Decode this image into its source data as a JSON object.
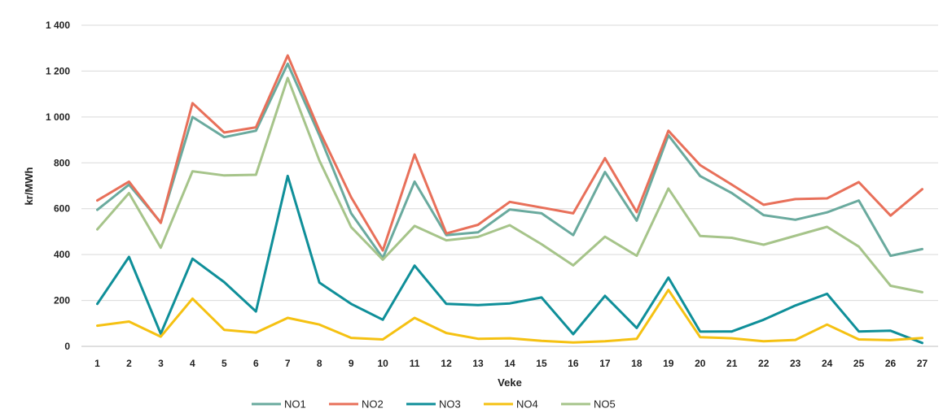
{
  "chart_data": {
    "type": "line",
    "title": "",
    "xlabel": "Veke",
    "ylabel": "kr/MWh",
    "ylim": [
      0,
      1400
    ],
    "yticks": [
      "0",
      "200",
      "400",
      "600",
      "800",
      "1 000",
      "1 200",
      "1 400"
    ],
    "ytick_values": [
      0,
      200,
      400,
      600,
      800,
      1000,
      1200,
      1400
    ],
    "categories": [
      "1",
      "2",
      "3",
      "4",
      "5",
      "6",
      "7",
      "8",
      "9",
      "10",
      "11",
      "12",
      "13",
      "14",
      "15",
      "16",
      "17",
      "18",
      "19",
      "20",
      "21",
      "22",
      "23",
      "24",
      "25",
      "26",
      "27"
    ],
    "grid": "horizontal",
    "legend": "bottom-center",
    "series": [
      {
        "name": "NO1",
        "color": "#6aaa9e",
        "values": [
          595,
          705,
          540,
          1000,
          912,
          940,
          1232,
          920,
          580,
          385,
          718,
          485,
          497,
          597,
          580,
          485,
          760,
          548,
          920,
          742,
          668,
          572,
          552,
          584,
          636,
          395,
          424
        ]
      },
      {
        "name": "NO2",
        "color": "#e8705a",
        "values": [
          636,
          718,
          538,
          1060,
          932,
          955,
          1268,
          940,
          650,
          418,
          836,
          492,
          530,
          630,
          605,
          580,
          820,
          585,
          940,
          790,
          705,
          617,
          642,
          645,
          716,
          570,
          685
        ]
      },
      {
        "name": "NO3",
        "color": "#0f8f99",
        "values": [
          185,
          390,
          55,
          382,
          280,
          152,
          743,
          278,
          185,
          116,
          352,
          185,
          180,
          187,
          213,
          53,
          220,
          80,
          300,
          64,
          65,
          116,
          178,
          229,
          65,
          68,
          15
        ]
      },
      {
        "name": "NO4",
        "color": "#f5c112",
        "values": [
          90,
          108,
          42,
          208,
          72,
          60,
          124,
          95,
          37,
          30,
          124,
          58,
          33,
          35,
          24,
          17,
          22,
          33,
          246,
          40,
          35,
          22,
          28,
          95,
          30,
          27,
          36
        ]
      },
      {
        "name": "NO5",
        "color": "#a6c48a",
        "values": [
          510,
          668,
          430,
          763,
          745,
          748,
          1170,
          810,
          520,
          378,
          525,
          462,
          477,
          528,
          445,
          353,
          478,
          395,
          688,
          481,
          473,
          443,
          482,
          521,
          435,
          264,
          236
        ]
      }
    ]
  }
}
